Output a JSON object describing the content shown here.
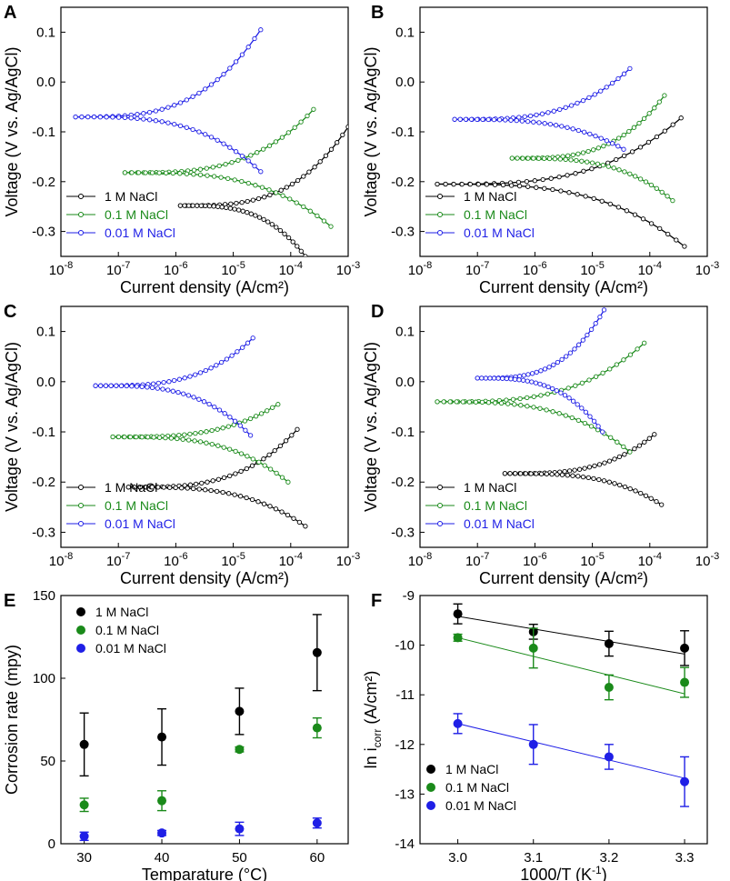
{
  "figure": {
    "colors": {
      "1 M NaCl": "#000000",
      "0.1 M NaCl": "#1a8a1a",
      "0.01 M NaCl": "#1f1fe6"
    }
  },
  "chart_data": [
    {
      "panel": "A",
      "type": "line",
      "xscale": "log",
      "xlabel": "Current density (A/cm²)",
      "ylabel": "Voltage (V vs. Ag/AgCl)",
      "xlim": [
        1e-08,
        0.001
      ],
      "ylim": [
        -0.35,
        0.15
      ],
      "xticks": [
        "10-8",
        "10-7",
        "10-6",
        "10-5",
        "10-4",
        "10-3"
      ],
      "yticks": [
        "0.1",
        "0.0",
        "-0.1",
        "-0.2",
        "-0.3"
      ],
      "legend": [
        "1 M NaCl",
        "0.1 M NaCl",
        "0.01 M NaCl"
      ],
      "series": [
        {
          "name": "1 M NaCl",
          "ecorr": -0.248,
          "ilow": 1.2e-06,
          "anodic_end": [
            0.001,
            -0.09
          ],
          "cathodic_end": [
            0.00018,
            -0.35
          ]
        },
        {
          "name": "0.1 M NaCl",
          "ecorr": -0.182,
          "ilow": 1.3e-07,
          "anodic_end": [
            0.00025,
            -0.055
          ],
          "cathodic_end": [
            0.0005,
            -0.29
          ]
        },
        {
          "name": "0.01 M NaCl",
          "ecorr": -0.07,
          "ilow": 1.8e-08,
          "anodic_end": [
            3e-05,
            0.105
          ],
          "cathodic_end": [
            3e-05,
            -0.18
          ]
        }
      ]
    },
    {
      "panel": "B",
      "type": "line",
      "xscale": "log",
      "xlabel": "Current density (A/cm²)",
      "ylabel": "Voltage (V vs. Ag/AgCl)",
      "xlim": [
        1e-08,
        0.001
      ],
      "ylim": [
        -0.35,
        0.15
      ],
      "xticks": [
        "10-8",
        "10-7",
        "10-6",
        "10-5",
        "10-4",
        "10-3"
      ],
      "yticks": [
        "0.1",
        "0.0",
        "-0.1",
        "-0.2",
        "-0.3"
      ],
      "legend": [
        "1 M NaCl",
        "0.1 M NaCl",
        "0.01 M NaCl"
      ],
      "series": [
        {
          "name": "1 M NaCl",
          "ecorr": -0.205,
          "ilow": 2e-08,
          "anodic_end": [
            0.00035,
            -0.072
          ],
          "cathodic_end": [
            0.0004,
            -0.33
          ]
        },
        {
          "name": "0.1 M NaCl",
          "ecorr": -0.153,
          "ilow": 4e-07,
          "anodic_end": [
            0.00018,
            -0.027
          ],
          "cathodic_end": [
            0.00025,
            -0.238
          ]
        },
        {
          "name": "0.01 M NaCl",
          "ecorr": -0.075,
          "ilow": 4e-08,
          "anodic_end": [
            4.5e-05,
            0.027
          ],
          "cathodic_end": [
            3.5e-05,
            -0.135
          ]
        }
      ]
    },
    {
      "panel": "C",
      "type": "line",
      "xscale": "log",
      "xlabel": "Current density (A/cm²)",
      "ylabel": "Voltage (V vs. Ag/AgCl)",
      "xlim": [
        1e-08,
        0.001
      ],
      "ylim": [
        -0.33,
        0.15
      ],
      "xticks": [
        "10-8",
        "10-7",
        "10-6",
        "10-5",
        "10-4",
        "10-3"
      ],
      "yticks": [
        "0.1",
        "0.0",
        "-0.1",
        "-0.2",
        "-0.3"
      ],
      "legend": [
        "1 M NaCl",
        "0.1 M NaCl",
        "0.01 M NaCl"
      ],
      "series": [
        {
          "name": "1 M NaCl",
          "ecorr": -0.21,
          "ilow": 1.5e-07,
          "anodic_end": [
            0.00013,
            -0.095
          ],
          "cathodic_end": [
            0.00018,
            -0.288
          ]
        },
        {
          "name": "0.1 M NaCl",
          "ecorr": -0.11,
          "ilow": 8e-08,
          "anodic_end": [
            6e-05,
            -0.045
          ],
          "cathodic_end": [
            9e-05,
            -0.2
          ]
        },
        {
          "name": "0.01 M NaCl",
          "ecorr": -0.008,
          "ilow": 4e-08,
          "anodic_end": [
            2.2e-05,
            0.087
          ],
          "cathodic_end": [
            2e-05,
            -0.107
          ]
        }
      ]
    },
    {
      "panel": "D",
      "type": "line",
      "xscale": "log",
      "xlabel": "Current density (A/cm²)",
      "ylabel": "Voltage (V vs. Ag/AgCl)",
      "xlim": [
        1e-08,
        0.001
      ],
      "ylim": [
        -0.33,
        0.15
      ],
      "xticks": [
        "10-8",
        "10-7",
        "10-6",
        "10-5",
        "10-4",
        "10-3"
      ],
      "yticks": [
        "0.1",
        "0.0",
        "-0.1",
        "-0.2",
        "-0.3"
      ],
      "legend": [
        "1 M NaCl",
        "0.1 M NaCl",
        "0.01 M NaCl"
      ],
      "series": [
        {
          "name": "1 M NaCl",
          "ecorr": -0.183,
          "ilow": 3e-07,
          "anodic_end": [
            0.00012,
            -0.105
          ],
          "cathodic_end": [
            0.00016,
            -0.245
          ]
        },
        {
          "name": "0.1 M NaCl",
          "ecorr": -0.04,
          "ilow": 2e-08,
          "anodic_end": [
            8e-05,
            0.077
          ],
          "cathodic_end": [
            4.5e-05,
            -0.14
          ]
        },
        {
          "name": "0.01 M NaCl",
          "ecorr": 0.007,
          "ilow": 1e-07,
          "anodic_end": [
            1.6e-05,
            0.143
          ],
          "cathodic_end": [
            1.5e-05,
            -0.1
          ]
        }
      ]
    },
    {
      "panel": "E",
      "type": "scatter",
      "xlabel": "Temparature (°C)",
      "ylabel": "Corrosion rate (mpy)",
      "xlim": [
        27,
        64
      ],
      "ylim": [
        0,
        150
      ],
      "xticks": [
        "30",
        "40",
        "50",
        "60"
      ],
      "yticks": [
        "0",
        "50",
        "100",
        "150"
      ],
      "legend": [
        "1 M NaCl",
        "0.1 M NaCl",
        "0.01 M NaCl"
      ],
      "x": [
        30,
        40,
        50,
        60
      ],
      "series": [
        {
          "name": "1 M NaCl",
          "values": [
            60,
            64.5,
            80,
            115.5
          ],
          "errors": [
            19,
            17,
            14,
            23
          ]
        },
        {
          "name": "0.1 M NaCl",
          "values": [
            23.5,
            26,
            57,
            70
          ],
          "errors": [
            4,
            6,
            1.5,
            6
          ]
        },
        {
          "name": "0.01 M NaCl",
          "values": [
            4.5,
            6.5,
            9,
            12.5
          ],
          "errors": [
            2.5,
            1.5,
            4,
            3
          ]
        }
      ]
    },
    {
      "panel": "F",
      "type": "scatter",
      "xlabel": "1000/T (K-1)",
      "ylabel": "ln icorr (A/cm²)",
      "xlim": [
        2.95,
        3.33
      ],
      "ylim": [
        -14,
        -9
      ],
      "xticks": [
        "3.0",
        "3.1",
        "3.2",
        "3.3"
      ],
      "yticks": [
        "-9",
        "-10",
        "-11",
        "-12",
        "-13",
        "-14"
      ],
      "legend": [
        "1 M NaCl",
        "0.1 M NaCl",
        "0.01 M NaCl"
      ],
      "x": [
        3.0,
        3.1,
        3.2,
        3.3
      ],
      "series": [
        {
          "name": "1 M NaCl",
          "values": [
            -9.37,
            -9.73,
            -9.97,
            -10.06
          ],
          "errors": [
            0.2,
            0.15,
            0.25,
            0.35
          ],
          "fit": [
            -9.42,
            -10.18
          ]
        },
        {
          "name": "0.1 M NaCl",
          "values": [
            -9.85,
            -10.06,
            -10.85,
            -10.75
          ],
          "errors": [
            0.07,
            0.4,
            0.25,
            0.3
          ],
          "fit": [
            -9.85,
            -10.98
          ]
        },
        {
          "name": "0.01 M NaCl",
          "values": [
            -11.58,
            -12.0,
            -12.25,
            -12.75
          ],
          "errors": [
            0.2,
            0.4,
            0.25,
            0.5
          ],
          "fit": [
            -11.58,
            -12.68
          ]
        }
      ]
    }
  ]
}
